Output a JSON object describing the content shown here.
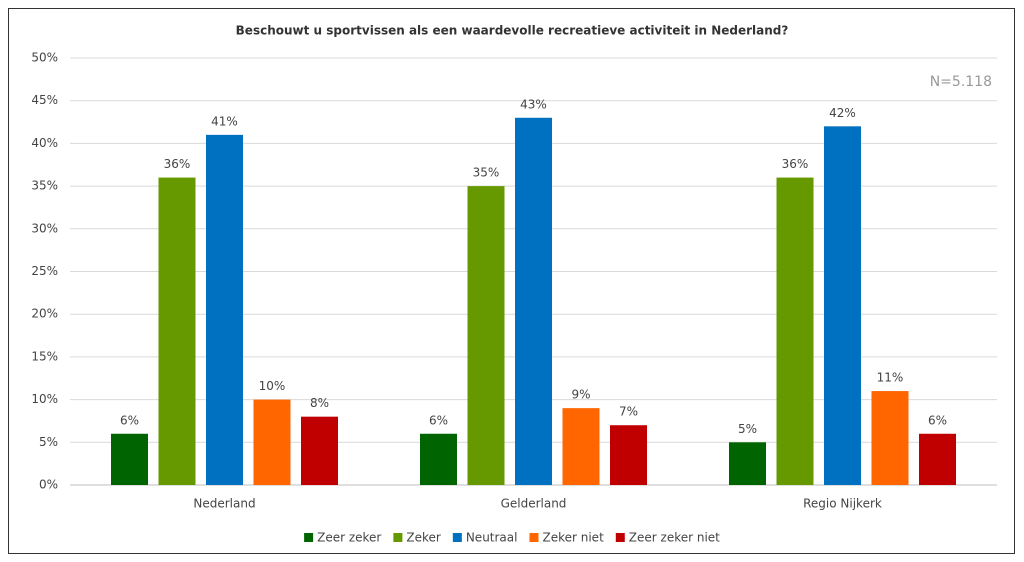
{
  "chart_data": {
    "type": "bar",
    "title": "Beschouwt u sportvissen als een waardevolle recreatieve activiteit in Nederland?",
    "annotation": "N=5.118",
    "categories": [
      "Nederland",
      "Gelderland",
      "Regio Nijkerk"
    ],
    "series": [
      {
        "name": "Zeer zeker",
        "color": "#006400",
        "values": [
          6,
          6,
          5
        ],
        "value_labels": [
          "6%",
          "6%",
          "5%"
        ]
      },
      {
        "name": "Zeker",
        "color": "#669900",
        "values": [
          36,
          35,
          36
        ],
        "value_labels": [
          "36%",
          "35%",
          "36%"
        ]
      },
      {
        "name": "Neutraal",
        "color": "#0070c0",
        "values": [
          41,
          43,
          42
        ],
        "value_labels": [
          "41%",
          "43%",
          "42%"
        ]
      },
      {
        "name": "Zeker niet",
        "color": "#ff6600",
        "values": [
          10,
          9,
          11
        ],
        "value_labels": [
          "10%",
          "9%",
          "11%"
        ]
      },
      {
        "name": "Zeer zeker niet",
        "color": "#c00000",
        "values": [
          8,
          7,
          6
        ],
        "value_labels": [
          "8%",
          "7%",
          "6%"
        ]
      }
    ],
    "ylim": [
      0,
      50
    ],
    "yticks": [
      {
        "value": 0,
        "label": "0%"
      },
      {
        "value": 5,
        "label": "5%"
      },
      {
        "value": 10,
        "label": "10%"
      },
      {
        "value": 15,
        "label": "15%"
      },
      {
        "value": 20,
        "label": "20%"
      },
      {
        "value": 25,
        "label": "25%"
      },
      {
        "value": 30,
        "label": "30%"
      },
      {
        "value": 35,
        "label": "35%"
      },
      {
        "value": 40,
        "label": "40%"
      },
      {
        "value": 45,
        "label": "45%"
      },
      {
        "value": 50,
        "label": "50%"
      }
    ],
    "grid": true,
    "legend": "bottom"
  }
}
